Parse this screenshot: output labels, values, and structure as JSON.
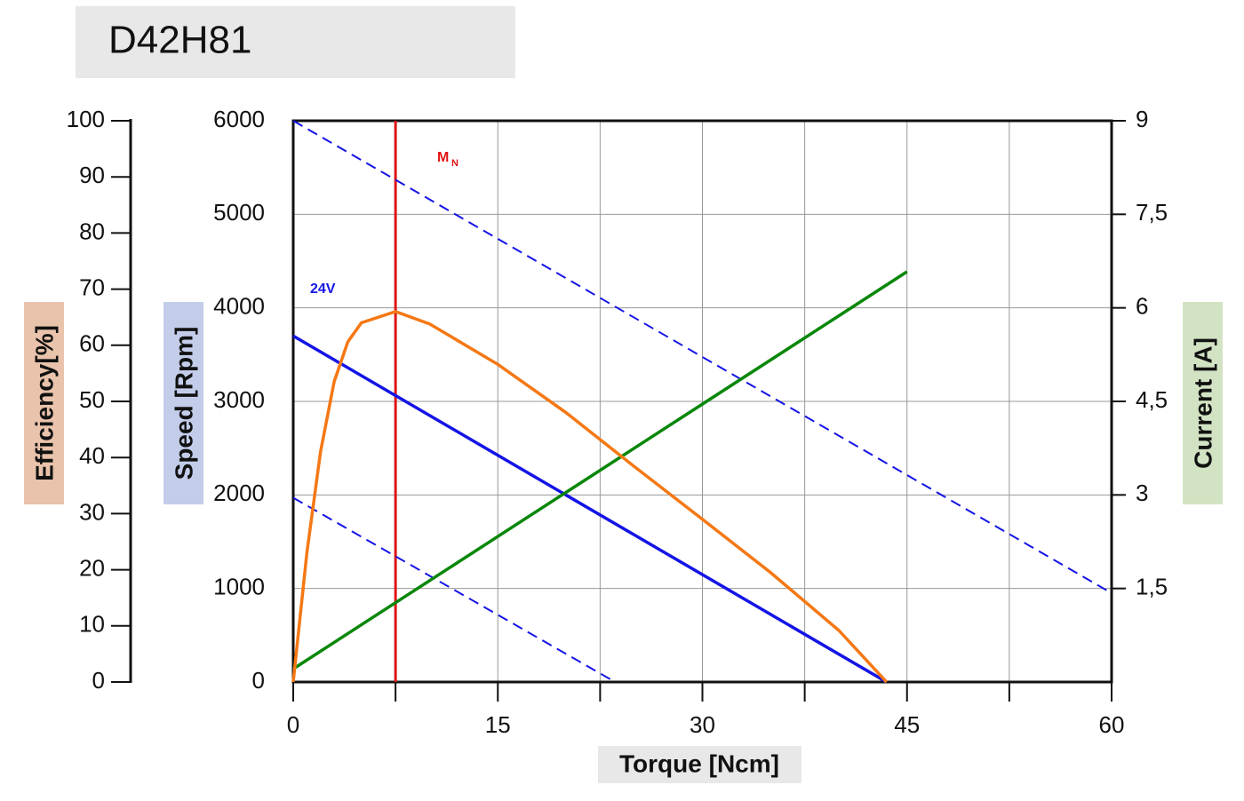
{
  "chart_data": {
    "type": "line",
    "title": "D42H81",
    "xlabel": "Torque [Ncm]",
    "ylabel": "Speed [Rpm]",
    "y2label": "Current [A]",
    "y3label": "Efficiency[%]",
    "xlim": [
      0,
      60
    ],
    "xticks": [
      0,
      15,
      30,
      45,
      60
    ],
    "xminor": [
      7.5,
      22.5,
      37.5,
      52.5
    ],
    "ylim": [
      0,
      6000
    ],
    "yticks": [
      0,
      1000,
      2000,
      3000,
      4000,
      5000,
      6000
    ],
    "y2lim": [
      0,
      9
    ],
    "y2ticks": [
      {
        "value": 1.5,
        "label": "1,5"
      },
      3,
      {
        "value": 4.5,
        "label": "4,5"
      },
      6,
      {
        "value": 7.5,
        "label": "7,5"
      },
      9
    ],
    "y3lim": [
      0,
      100
    ],
    "y3ticks": [
      0,
      10,
      20,
      30,
      40,
      50,
      60,
      70,
      80,
      90,
      100
    ],
    "grid": true,
    "series": [
      {
        "axis": "y",
        "color": "#1414e6",
        "dash": false,
        "x": [
          0,
          43.5
        ],
        "values": [
          3700,
          0
        ]
      },
      {
        "axis": "y",
        "color": "#1414e6",
        "dash": true,
        "x": [
          0,
          60
        ],
        "values": [
          6000,
          950
        ]
      },
      {
        "axis": "y",
        "color": "#1414e6",
        "dash": true,
        "x": [
          0,
          23.6
        ],
        "values": [
          1970,
          0
        ]
      },
      {
        "axis": "y2",
        "color": "#0a870a",
        "dash": false,
        "x": [
          0,
          45
        ],
        "values": [
          0.21,
          6.58
        ]
      },
      {
        "axis": "y3",
        "color": "#f57814",
        "dash": false,
        "x": [
          0,
          1,
          2,
          3,
          4,
          5,
          7.5,
          10,
          15,
          20,
          25,
          30,
          35,
          40,
          43.5
        ],
        "values": [
          0,
          23,
          41,
          53.5,
          60.6,
          64,
          66,
          63.8,
          56.6,
          48,
          38.4,
          29,
          19.5,
          9.2,
          0
        ]
      }
    ],
    "vline": {
      "x": 7.5,
      "color": "#e01414"
    },
    "annotations": [
      {
        "text": "M",
        "sub": "N"
      },
      {
        "text": "24V"
      }
    ]
  }
}
